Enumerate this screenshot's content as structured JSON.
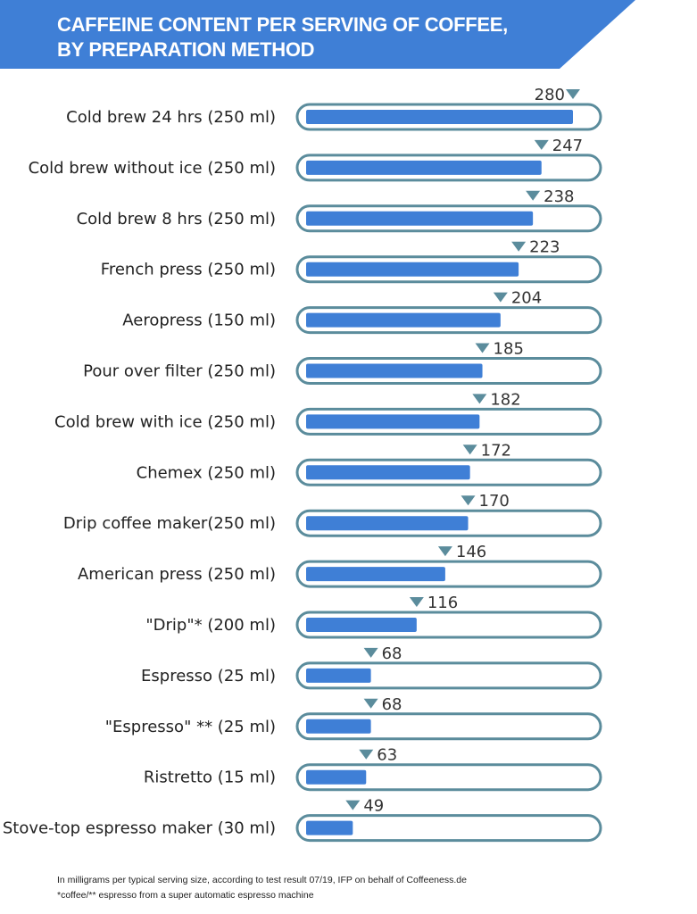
{
  "chart_data": {
    "type": "bar",
    "orientation": "horizontal",
    "title": "CAFFEINE CONTENT PER SERVING OF COFFEE, BY PREPARATION METHOD",
    "title_lines": [
      "CAFFEINE CONTENT PER SERVING OF COFFEE,",
      "BY PREPARATION METHOD"
    ],
    "categories": [
      "Cold brew 24 hrs (250 ml)",
      "Cold brew without ice  (250 ml)",
      "Cold brew 8 hrs (250 ml)",
      "French press (250 ml)",
      "Aeropress  (150 ml)",
      "Pour over filter (250 ml)",
      "Cold brew with ice (250 ml)",
      "Chemex (250 ml)",
      "Drip coffee maker(250 ml)",
      "American press  (250 ml)",
      "\"Drip\"*  (200 ml)",
      "Espresso (25 ml)",
      "\"Espresso\" ** (25 ml)",
      "Ristretto (15 ml)",
      "Stove-top espresso maker (30 ml)"
    ],
    "values": [
      280,
      247,
      238,
      223,
      204,
      185,
      182,
      172,
      170,
      146,
      116,
      68,
      68,
      63,
      49
    ],
    "xlim": [
      0,
      280
    ],
    "grid": false,
    "colors": {
      "banner": "#3f7fd6",
      "bar": "#3f7fd6",
      "track_border": "#5b8c9c",
      "marker": "#5b8c9c"
    },
    "notes": [
      "In milligrams per typical serving size, according to test result 07/19, IFP on behalf of Coffeeness.de",
      "*coffee/** espresso from a super automatic espresso machine"
    ]
  }
}
